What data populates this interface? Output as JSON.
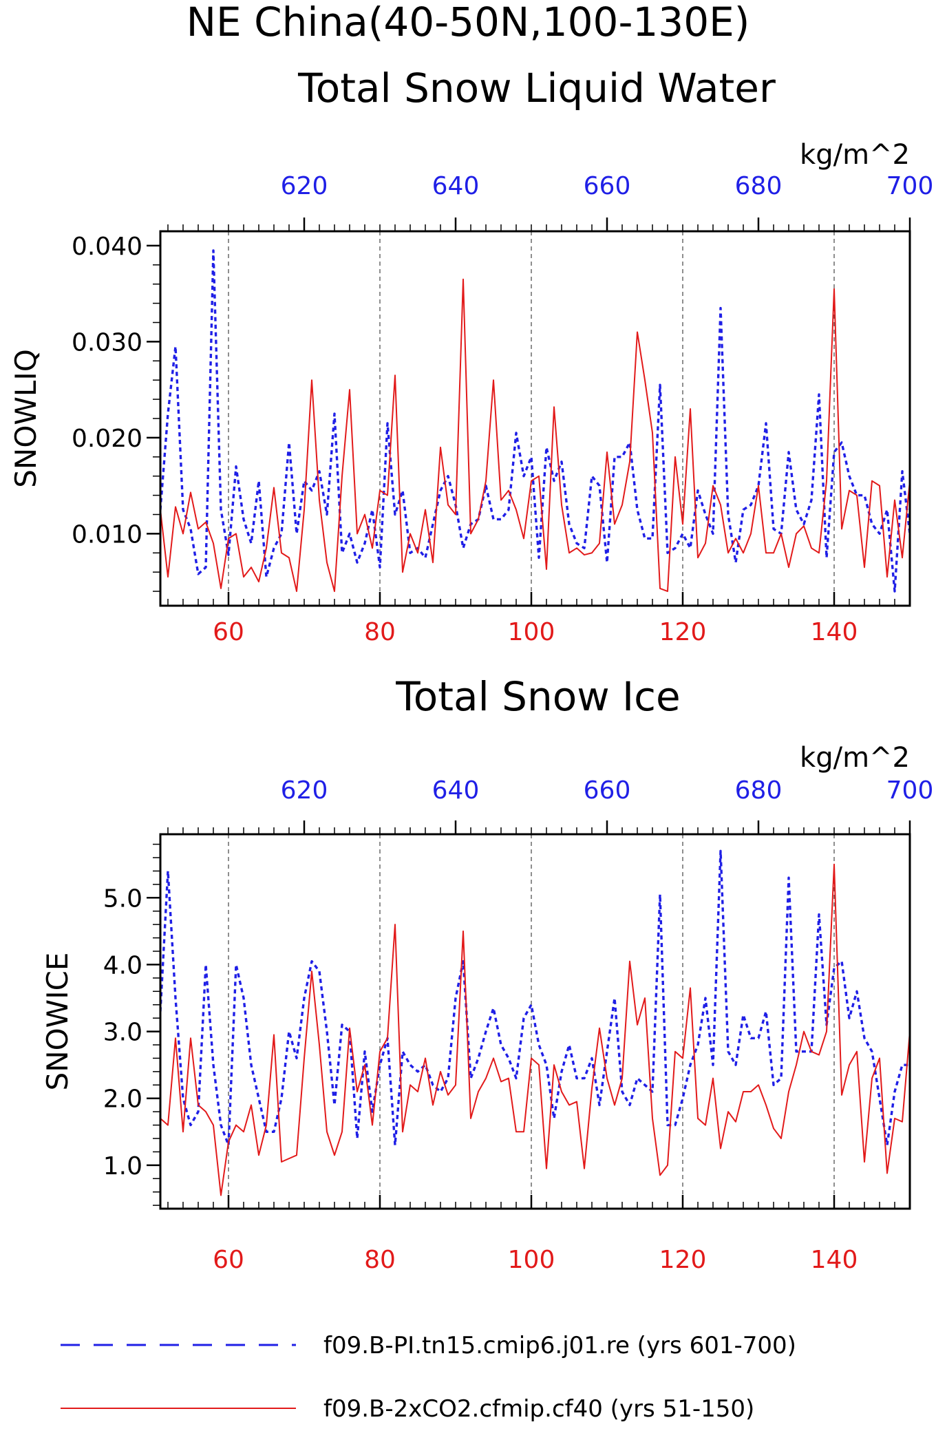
{
  "title": {
    "line1": "NE China(40-50N,100-130E)"
  },
  "colors": {
    "blue": "#1f1fe6",
    "red": "#e21a1a",
    "axis": "#000000",
    "grid": "#444444"
  },
  "chart_data": [
    {
      "type": "line",
      "title": "Total Snow Liquid Water",
      "ylabel": "SNOWLIQ",
      "top_axis_unit": "kg/m^2",
      "xlim": [
        51,
        150
      ],
      "x2lim": [
        601,
        700
      ],
      "ylim": [
        0.0025,
        0.0415
      ],
      "yticks": [
        0.01,
        0.02,
        0.03,
        0.04
      ],
      "ytick_labels": [
        "0.010",
        "0.020",
        "0.030",
        "0.040"
      ],
      "xticks": [
        60,
        80,
        100,
        120,
        140
      ],
      "xtick_labels": [
        "60",
        "80",
        "100",
        "120",
        "140"
      ],
      "x2ticks": [
        620,
        640,
        660,
        680,
        700
      ],
      "x2tick_labels": [
        "620",
        "640",
        "660",
        "680",
        "700"
      ],
      "grid_x": [
        60,
        80,
        100,
        120,
        140
      ],
      "series": [
        {
          "name": "f09.B-PI.tn15.cmip6.j01.re (yrs 601-700)",
          "axis": "top",
          "style": "dashed",
          "x_start": 601,
          "values": [
            0.0125,
            0.0225,
            0.0295,
            0.0125,
            0.0105,
            0.0058,
            0.0065,
            0.0395,
            0.0125,
            0.0078,
            0.017,
            0.0115,
            0.009,
            0.0155,
            0.0055,
            0.0085,
            0.01,
            0.0195,
            0.01,
            0.0155,
            0.0145,
            0.0165,
            0.012,
            0.0225,
            0.008,
            0.01,
            0.007,
            0.009,
            0.0125,
            0.0065,
            0.0215,
            0.012,
            0.0145,
            0.008,
            0.0085,
            0.0075,
            0.011,
            0.0145,
            0.016,
            0.013,
            0.0085,
            0.011,
            0.0115,
            0.015,
            0.0115,
            0.0115,
            0.0125,
            0.0205,
            0.016,
            0.018,
            0.0075,
            0.019,
            0.0155,
            0.0175,
            0.011,
            0.009,
            0.0085,
            0.016,
            0.015,
            0.007,
            0.018,
            0.018,
            0.0195,
            0.0125,
            0.0095,
            0.0095,
            0.0255,
            0.008,
            0.0085,
            0.01,
            0.0085,
            0.0145,
            0.012,
            0.01,
            0.0335,
            0.012,
            0.007,
            0.0125,
            0.013,
            0.015,
            0.0215,
            0.0105,
            0.01,
            0.0185,
            0.0125,
            0.011,
            0.0135,
            0.0245,
            0.0075,
            0.0185,
            0.0195,
            0.016,
            0.014,
            0.014,
            0.011,
            0.01,
            0.0125,
            0.004,
            0.0165,
            0.01
          ]
        },
        {
          "name": "f09.B-2xCO2.cfmip.cf40 (yrs 51-150)",
          "axis": "bottom",
          "style": "solid",
          "x_start": 51,
          "values": [
            0.0125,
            0.0055,
            0.0128,
            0.01,
            0.0143,
            0.0105,
            0.0112,
            0.009,
            0.0043,
            0.0095,
            0.01,
            0.0055,
            0.0065,
            0.005,
            0.0085,
            0.0148,
            0.008,
            0.0075,
            0.004,
            0.0125,
            0.026,
            0.0135,
            0.007,
            0.004,
            0.016,
            0.025,
            0.01,
            0.012,
            0.0085,
            0.0145,
            0.014,
            0.0265,
            0.006,
            0.01,
            0.008,
            0.0125,
            0.007,
            0.019,
            0.013,
            0.012,
            0.0365,
            0.01,
            0.0115,
            0.0155,
            0.026,
            0.0135,
            0.0145,
            0.0125,
            0.0095,
            0.0155,
            0.016,
            0.0063,
            0.0232,
            0.013,
            0.008,
            0.0085,
            0.0078,
            0.008,
            0.009,
            0.0185,
            0.011,
            0.013,
            0.0175,
            0.031,
            0.026,
            0.0205,
            0.0043,
            0.004,
            0.018,
            0.011,
            0.023,
            0.0075,
            0.009,
            0.015,
            0.013,
            0.008,
            0.0095,
            0.008,
            0.01,
            0.015,
            0.008,
            0.008,
            0.01,
            0.0065,
            0.01,
            0.0108,
            0.0085,
            0.008,
            0.0155,
            0.0355,
            0.0105,
            0.0145,
            0.014,
            0.0065,
            0.0155,
            0.015,
            0.0055,
            0.0135,
            0.0075,
            0.0155
          ]
        }
      ]
    },
    {
      "type": "line",
      "title": "Total Snow Ice",
      "ylabel": "SNOWICE",
      "top_axis_unit": "kg/m^2",
      "xlim": [
        51,
        150
      ],
      "x2lim": [
        601,
        700
      ],
      "ylim": [
        0.35,
        5.95
      ],
      "yticks": [
        1.0,
        2.0,
        3.0,
        4.0,
        5.0
      ],
      "ytick_labels": [
        "1.0",
        "2.0",
        "3.0",
        "4.0",
        "5.0"
      ],
      "xticks": [
        60,
        80,
        100,
        120,
        140
      ],
      "xtick_labels": [
        "60",
        "80",
        "100",
        "120",
        "140"
      ],
      "x2ticks": [
        620,
        640,
        660,
        680,
        700
      ],
      "x2tick_labels": [
        "620",
        "640",
        "660",
        "680",
        "700"
      ],
      "grid_x": [
        60,
        80,
        100,
        120,
        140
      ],
      "series": [
        {
          "name": "f09.B-PI.tn15.cmip6.j01.re (yrs 601-700)",
          "axis": "top",
          "style": "dashed",
          "x_start": 601,
          "values": [
            3.3,
            5.4,
            3.5,
            2.0,
            1.6,
            1.8,
            4.0,
            2.5,
            1.6,
            1.3,
            4.0,
            3.5,
            2.5,
            2.0,
            1.5,
            1.5,
            2.0,
            3.0,
            2.6,
            3.5,
            4.05,
            3.9,
            3.0,
            1.9,
            3.1,
            3.0,
            1.4,
            2.7,
            1.8,
            2.5,
            2.9,
            1.3,
            2.7,
            2.5,
            2.4,
            2.5,
            2.2,
            2.1,
            2.3,
            3.5,
            4.05,
            2.3,
            2.6,
            3.0,
            3.35,
            2.8,
            2.6,
            2.3,
            3.2,
            3.4,
            2.8,
            2.5,
            1.7,
            2.4,
            2.8,
            2.3,
            2.3,
            2.6,
            1.9,
            2.7,
            3.5,
            2.1,
            1.9,
            2.3,
            2.2,
            2.1,
            5.05,
            1.6,
            1.6,
            2.0,
            2.5,
            2.8,
            3.5,
            2.5,
            5.7,
            2.7,
            2.5,
            3.25,
            2.9,
            2.9,
            3.3,
            2.2,
            2.3,
            5.3,
            2.7,
            2.7,
            2.7,
            4.75,
            3.1,
            3.95,
            4.05,
            3.2,
            3.6,
            2.9,
            2.7,
            2.0,
            1.3,
            2.1,
            2.5,
            2.5
          ]
        },
        {
          "name": "f09.B-2xCO2.cfmip.cf40 (yrs 51-150)",
          "axis": "bottom",
          "style": "solid",
          "x_start": 51,
          "values": [
            1.7,
            1.6,
            2.9,
            1.5,
            2.9,
            1.9,
            1.8,
            1.6,
            0.55,
            1.35,
            1.6,
            1.5,
            1.9,
            1.15,
            1.6,
            2.95,
            1.05,
            1.1,
            1.15,
            2.6,
            3.9,
            2.8,
            1.5,
            1.15,
            1.5,
            3.05,
            2.1,
            2.5,
            1.6,
            2.7,
            2.9,
            4.6,
            1.5,
            2.2,
            2.1,
            2.6,
            1.9,
            2.4,
            2.05,
            2.2,
            4.5,
            1.7,
            2.1,
            2.3,
            2.6,
            2.25,
            2.3,
            1.5,
            1.5,
            2.6,
            2.5,
            0.95,
            2.5,
            2.1,
            1.9,
            1.95,
            0.95,
            2.15,
            3.05,
            2.3,
            1.9,
            2.3,
            4.05,
            3.1,
            3.5,
            1.7,
            0.85,
            1.0,
            2.7,
            2.6,
            3.65,
            1.7,
            1.6,
            2.3,
            1.25,
            1.8,
            1.65,
            2.1,
            2.1,
            2.2,
            1.9,
            1.55,
            1.4,
            2.1,
            2.5,
            3.0,
            2.7,
            2.65,
            3.0,
            5.5,
            2.05,
            2.5,
            2.7,
            1.05,
            2.3,
            2.6,
            0.88,
            1.7,
            1.65,
            3.0
          ]
        }
      ]
    }
  ],
  "legend": {
    "items": [
      {
        "label": "f09.B-PI.tn15.cmip6.j01.re (yrs 601-700)",
        "style": "dashed",
        "color": "#1f1fe6"
      },
      {
        "label": "f09.B-2xCO2.cfmip.cf40 (yrs 51-150)",
        "style": "solid",
        "color": "#e21a1a"
      }
    ]
  }
}
